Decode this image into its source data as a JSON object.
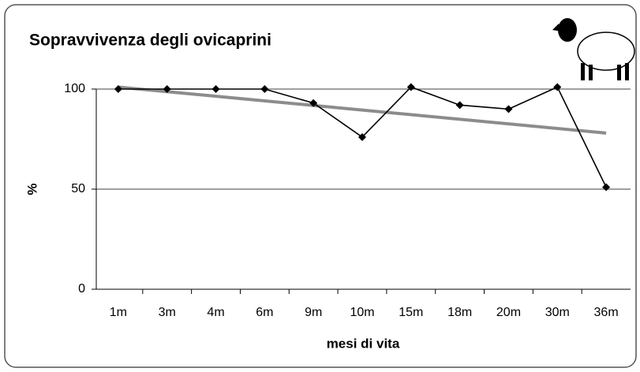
{
  "chart_data": {
    "type": "line",
    "title": "Sopravvivenza degli ovicaprini",
    "x_label": "mesi di vita",
    "y_label": "%",
    "categories": [
      "1m",
      "3m",
      "4m",
      "6m",
      "9m",
      "10m",
      "15m",
      "18m",
      "20m",
      "30m",
      "36m"
    ],
    "series": [
      {
        "color": "#000000",
        "values": [
          100,
          100,
          100,
          100,
          93,
          76,
          101,
          92,
          90,
          101,
          51
        ]
      }
    ],
    "trendline": {
      "color": "#8c8c8c",
      "values": [
        101,
        78
      ]
    },
    "ylim": [
      0,
      100
    ],
    "yticks": [
      0,
      50,
      100
    ],
    "grid": true
  }
}
